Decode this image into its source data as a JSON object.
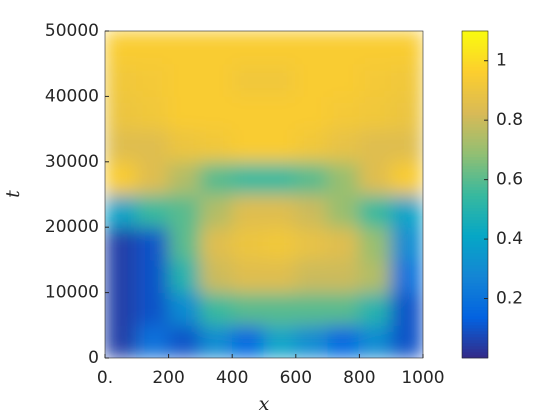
{
  "chart_data": {
    "type": "heatmap",
    "xlabel": "x",
    "ylabel": "t",
    "xlim": [
      0,
      1000
    ],
    "ylim": [
      0,
      50000
    ],
    "xticks": [
      {
        "value": 0,
        "label": "0."
      },
      200,
      400,
      600,
      800,
      1000
    ],
    "yticks": [
      0,
      10000,
      20000,
      30000,
      40000,
      50000
    ],
    "xbins": [
      0,
      100,
      200,
      300,
      400,
      500,
      600,
      700,
      800,
      900,
      1000
    ],
    "ybins": [
      0,
      5000,
      10000,
      15000,
      20000,
      25000,
      30000,
      35000,
      40000,
      45000,
      50000
    ],
    "z": [
      [
        0.05,
        0.2,
        0.1,
        0.3,
        0.15,
        0.4,
        0.3,
        0.15,
        0.3,
        0.1
      ],
      [
        0.05,
        0.1,
        0.3,
        0.55,
        0.6,
        0.6,
        0.6,
        0.6,
        0.5,
        0.1
      ],
      [
        0.05,
        0.1,
        0.5,
        0.8,
        0.85,
        0.85,
        0.8,
        0.8,
        0.75,
        0.2
      ],
      [
        0.05,
        0.1,
        0.6,
        0.85,
        0.9,
        0.92,
        0.88,
        0.85,
        0.7,
        0.3
      ],
      [
        0.4,
        0.55,
        0.6,
        0.75,
        0.85,
        0.85,
        0.8,
        0.7,
        0.55,
        0.4
      ],
      [
        0.95,
        0.85,
        0.75,
        0.6,
        0.55,
        0.55,
        0.6,
        0.7,
        0.85,
        0.95
      ],
      [
        0.85,
        0.85,
        0.9,
        0.92,
        0.95,
        0.95,
        0.92,
        0.88,
        0.85,
        0.85
      ],
      [
        0.9,
        0.92,
        0.95,
        0.95,
        0.95,
        0.95,
        0.95,
        0.93,
        0.92,
        0.9
      ],
      [
        0.92,
        0.93,
        0.95,
        0.95,
        0.92,
        0.92,
        0.95,
        0.95,
        0.93,
        0.92
      ],
      [
        0.95,
        0.95,
        0.95,
        0.95,
        0.95,
        0.95,
        0.95,
        0.95,
        0.95,
        0.95
      ]
    ],
    "clim": [
      0,
      1.1
    ],
    "cticks": [
      0.2,
      0.4,
      0.6,
      0.8,
      1
    ],
    "colormap": [
      "#352a87",
      "#0363e1",
      "#1485d4",
      "#06a7c6",
      "#38b99e",
      "#92bf73",
      "#d9ba56",
      "#fcce2e",
      "#f9fb0e"
    ]
  }
}
